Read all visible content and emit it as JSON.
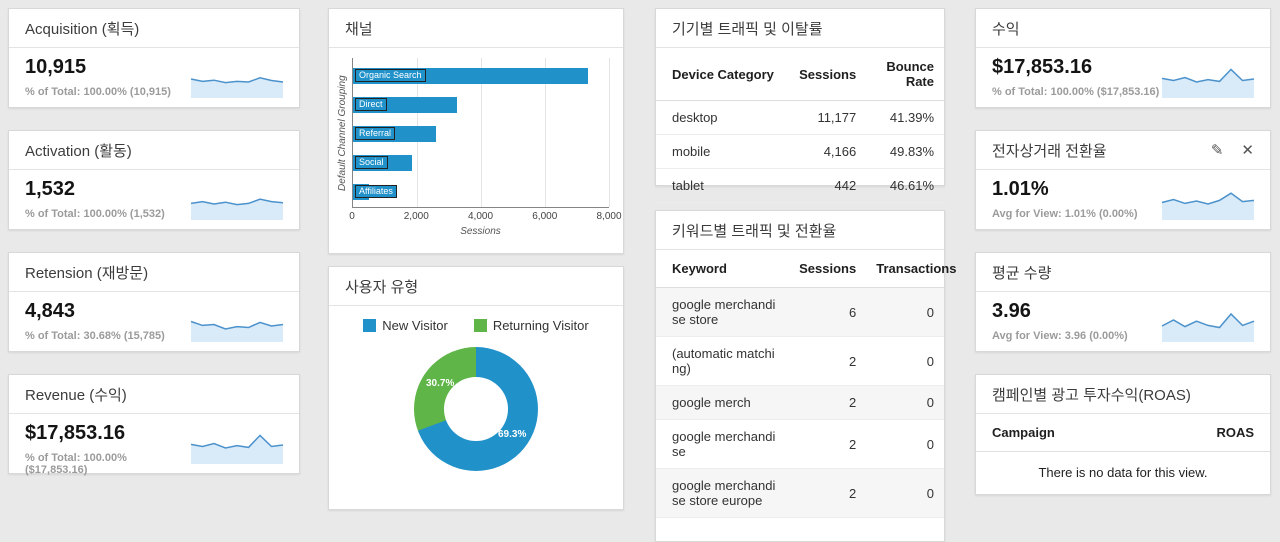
{
  "colors": {
    "chart_blue": "#2191c9",
    "chart_green": "#5fb547",
    "spark_line": "#4b92cc",
    "spark_fill": "#d9eaf8"
  },
  "scorecards": {
    "acquisition": {
      "title": "Acquisition (획득)",
      "value": "10,915",
      "subtext": "% of Total: 100.00% (10,915)",
      "spark": [
        0.5,
        0.42,
        0.46,
        0.38,
        0.42,
        0.4,
        0.54,
        0.45,
        0.4
      ]
    },
    "activation": {
      "title": "Activation (활동)",
      "value": "1,532",
      "subtext": "% of Total: 100.00% (1,532)",
      "spark": [
        0.42,
        0.48,
        0.4,
        0.46,
        0.38,
        0.42,
        0.56,
        0.48,
        0.44
      ]
    },
    "retension": {
      "title": "Retension (재방문)",
      "value": "4,843",
      "subtext": "% of Total: 30.68% (15,785)",
      "spark": [
        0.55,
        0.42,
        0.45,
        0.3,
        0.38,
        0.35,
        0.52,
        0.4,
        0.45
      ]
    },
    "revenue": {
      "title": "Revenue (수익)",
      "value": "$17,853.16",
      "subtext": "% of Total: 100.00% ($17,853.16)",
      "spark": [
        0.52,
        0.45,
        0.55,
        0.4,
        0.48,
        0.42,
        0.82,
        0.45,
        0.5
      ]
    },
    "profit": {
      "title": "수익",
      "value": "$17,853.16",
      "subtext": "% of Total: 100.00% ($17,853.16)",
      "spark": [
        0.52,
        0.45,
        0.55,
        0.4,
        0.48,
        0.42,
        0.82,
        0.45,
        0.5
      ]
    },
    "ecommerce": {
      "title": "전자상거래 전환율",
      "value": "1.01%",
      "subtext": "Avg for View: 1.01% (0.00%)",
      "spark": [
        0.45,
        0.55,
        0.42,
        0.5,
        0.4,
        0.52,
        0.76,
        0.48,
        0.52
      ]
    },
    "avg_qty": {
      "title": "평균 수량",
      "value": "3.96",
      "subtext": "Avg for View: 3.96 (0.00%)",
      "spark": [
        0.4,
        0.6,
        0.38,
        0.56,
        0.42,
        0.35,
        0.8,
        0.42,
        0.56
      ]
    }
  },
  "ecommerce_icons": {
    "edit": "✎",
    "close": "✕"
  },
  "channels": {
    "title": "채널",
    "chart_data": {
      "type": "bar",
      "orientation": "horizontal",
      "categories": [
        "Organic Search",
        "Direct",
        "Referral",
        "Social",
        "Affiliates"
      ],
      "values": [
        7350,
        3250,
        2600,
        1850,
        500
      ],
      "xlabel": "Sessions",
      "ylabel": "Default Channel Grouping",
      "xlim": [
        0,
        8000
      ],
      "xticks": [
        "0",
        "2,000",
        "4,000",
        "6,000",
        "8,000"
      ],
      "grid": true
    }
  },
  "user_type": {
    "title": "사용자 유형",
    "chart_data": {
      "type": "pie",
      "style": "donut",
      "labels": [
        "New Visitor",
        "Returning Visitor"
      ],
      "values": [
        69.3,
        30.7
      ],
      "pct_labels": [
        "69.3%",
        "30.7%"
      ],
      "colors": [
        "#2191c9",
        "#5fb547"
      ],
      "legend_position": "top"
    }
  },
  "device_table": {
    "title": "기기별 트래픽 및 이탈률",
    "columns": [
      "Device Category",
      "Sessions",
      "Bounce Rate"
    ],
    "rows": [
      [
        "desktop",
        "11,177",
        "41.39%"
      ],
      [
        "mobile",
        "4,166",
        "49.83%"
      ],
      [
        "tablet",
        "442",
        "46.61%"
      ]
    ]
  },
  "keyword_table": {
    "title": "키워드별 트래픽 및 전환율",
    "columns": [
      "Keyword",
      "Sessions",
      "Transactions"
    ],
    "rows": [
      [
        "google merchandise store",
        "6",
        "0"
      ],
      [
        "(automatic matching)",
        "2",
        "0"
      ],
      [
        "google merch",
        "2",
        "0"
      ],
      [
        "google merchandise",
        "2",
        "0"
      ],
      [
        "google merchandise store europe",
        "2",
        "0"
      ]
    ]
  },
  "roas": {
    "title": "캠페인별 광고 투자수익(ROAS)",
    "columns": [
      "Campaign",
      "ROAS"
    ],
    "empty_text": "There is no data for this view."
  }
}
